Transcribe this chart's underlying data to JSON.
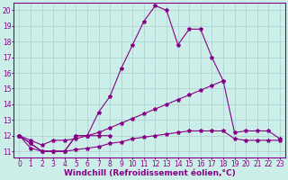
{
  "series": {
    "s1_x": [
      0,
      1,
      2,
      3,
      4,
      5,
      6,
      7,
      8
    ],
    "s1_y": [
      12,
      11.5,
      11,
      11,
      11,
      12,
      12,
      12,
      12
    ],
    "s2_x": [
      0,
      1,
      2,
      3,
      4,
      5,
      6,
      7,
      8,
      9,
      10,
      11,
      12,
      13,
      14,
      15,
      16,
      17,
      18
    ],
    "s2_y": [
      12,
      11.5,
      11,
      11,
      11,
      12,
      12,
      13.5,
      14.5,
      16.3,
      17.8,
      19.3,
      20.3,
      20.0,
      17.8,
      18.8,
      18.8,
      17.0,
      15.5
    ],
    "s3_x": [
      0,
      1,
      2,
      3,
      4,
      5,
      6,
      7,
      8,
      9,
      10,
      11,
      12,
      13,
      14,
      15,
      16,
      17,
      18,
      19,
      20,
      21,
      22,
      23
    ],
    "s3_y": [
      12,
      11.7,
      11.4,
      11.7,
      11.7,
      11.8,
      12.0,
      12.2,
      12.5,
      12.8,
      13.1,
      13.4,
      13.7,
      14.0,
      14.3,
      14.6,
      14.9,
      15.2,
      15.5,
      12.2,
      12.3,
      12.3,
      12.3,
      11.8
    ],
    "s4_x": [
      0,
      1,
      2,
      3,
      4,
      5,
      6,
      7,
      8,
      9,
      10,
      11,
      12,
      13,
      14,
      15,
      16,
      17,
      18,
      19,
      20,
      21,
      22,
      23
    ],
    "s4_y": [
      12,
      11.2,
      11.0,
      11.0,
      11.0,
      11.1,
      11.2,
      11.3,
      11.5,
      11.6,
      11.8,
      11.9,
      12.0,
      12.1,
      12.2,
      12.3,
      12.3,
      12.3,
      12.3,
      11.8,
      11.7,
      11.7,
      11.7,
      11.7
    ]
  },
  "ylim": [
    10.6,
    20.5
  ],
  "xlim": [
    -0.5,
    23.5
  ],
  "yticks": [
    11,
    12,
    13,
    14,
    15,
    16,
    17,
    18,
    19,
    20
  ],
  "xticks": [
    0,
    1,
    2,
    3,
    4,
    5,
    6,
    7,
    8,
    9,
    10,
    11,
    12,
    13,
    14,
    15,
    16,
    17,
    18,
    19,
    20,
    21,
    22,
    23
  ],
  "line_color": "#880088",
  "bg_color": "#cceee8",
  "grid_color": "#aacccc",
  "xlabel": "Windchill (Refroidissement éolien,°C)",
  "marker": "*",
  "marker_size": 3,
  "linewidth": 0.8,
  "xlabel_fontsize": 6.5,
  "tick_fontsize": 5.5
}
